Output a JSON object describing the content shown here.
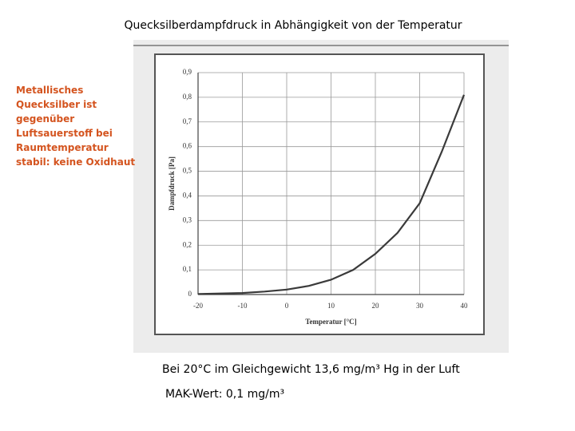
{
  "slide": {
    "title": "Quecksilberdampfdruck in Abhängigkeit von der Temperatur",
    "note": [
      "Metallisches",
      "Quecksilber ist",
      "gegenüber",
      "Luftsauerstoff bei",
      "Raumtemperatur",
      "stabil: keine Oxidhaut"
    ],
    "captions": [
      "Bei 20°C im Gleichgewicht 13,6 mg/m³ Hg in der Luft",
      "MAK-Wert: 0,1 mg/m³"
    ]
  },
  "chart_data": {
    "type": "line",
    "xlabel": "Temperatur [°C]",
    "ylabel": "Dampfdruck [Pa]",
    "x": [
      -20,
      -15,
      -10,
      -5,
      0,
      5,
      10,
      15,
      20,
      25,
      30,
      35,
      40
    ],
    "values": [
      0.002,
      0.004,
      0.006,
      0.012,
      0.02,
      0.035,
      0.06,
      0.1,
      0.165,
      0.25,
      0.37,
      0.58,
      0.81
    ],
    "color": "#3a3a3a",
    "xlim": [
      -20,
      40
    ],
    "ylim": [
      0,
      0.9
    ],
    "xticks": [
      -20,
      -10,
      0,
      10,
      20,
      30,
      40
    ],
    "yticks": [
      0,
      {
        "value": 0.1,
        "label": "0,1"
      },
      {
        "value": 0.2,
        "label": "0,2"
      },
      {
        "value": 0.3,
        "label": "0,3"
      },
      {
        "value": 0.4,
        "label": "0,4"
      },
      {
        "value": 0.5,
        "label": "0,5"
      },
      {
        "value": 0.6,
        "label": "0,6"
      },
      {
        "value": 0.7,
        "label": "0,7"
      },
      {
        "value": 0.8,
        "label": "0,8"
      },
      {
        "value": 0.9,
        "label": "0,9"
      }
    ],
    "grid": true
  }
}
